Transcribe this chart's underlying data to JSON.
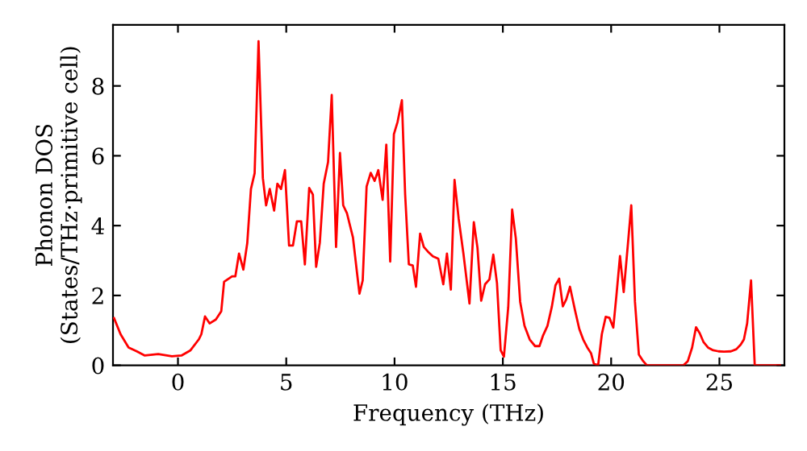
{
  "chart_data": {
    "type": "line",
    "xlabel": "Frequency (THz)",
    "ylabel": "Phonon DOS\n(States/THz·primitive cell)",
    "xlim": [
      -3,
      28
    ],
    "ylim": [
      0,
      9.75
    ],
    "xticks": [
      0,
      5,
      10,
      15,
      20,
      25
    ],
    "yticks": [
      0,
      2,
      4,
      6,
      8
    ],
    "grid": false,
    "marker": "none",
    "line_style": "solid",
    "series": [
      {
        "color": "#ff0000",
        "x": [
          -2.95,
          -2.65,
          -2.28,
          -1.9,
          -1.53,
          -0.91,
          -0.28,
          0.16,
          0.58,
          0.96,
          1.08,
          1.25,
          1.46,
          1.75,
          2.0,
          2.13,
          2.5,
          2.65,
          2.82,
          3.02,
          3.2,
          3.37,
          3.54,
          3.72,
          3.92,
          4.07,
          4.24,
          4.44,
          4.59,
          4.76,
          4.94,
          5.13,
          5.31,
          5.49,
          5.69,
          5.86,
          6.06,
          6.23,
          6.38,
          6.55,
          6.73,
          6.93,
          7.1,
          7.3,
          7.48,
          7.63,
          7.8,
          8.08,
          8.25,
          8.38,
          8.53,
          8.71,
          8.9,
          9.08,
          9.25,
          9.45,
          9.62,
          9.8,
          9.97,
          10.14,
          10.34,
          10.49,
          10.66,
          10.84,
          10.99,
          11.18,
          11.35,
          11.55,
          11.77,
          12.02,
          12.25,
          12.42,
          12.6,
          12.77,
          12.96,
          13.18,
          13.46,
          13.66,
          13.83,
          14.0,
          14.18,
          14.38,
          14.56,
          14.73,
          14.9,
          15.05,
          15.25,
          15.43,
          15.6,
          15.8,
          16.0,
          16.24,
          16.49,
          16.69,
          16.86,
          17.06,
          17.26,
          17.43,
          17.6,
          17.77,
          17.93,
          18.1,
          18.33,
          18.53,
          18.71,
          18.9,
          19.07,
          19.2,
          19.4,
          19.57,
          19.75,
          19.92,
          20.1,
          20.24,
          20.41,
          20.58,
          20.78,
          20.93,
          21.1,
          21.28,
          21.48,
          21.65,
          23.34,
          23.54,
          23.74,
          23.92,
          24.09,
          24.27,
          24.47,
          24.71,
          24.96,
          25.21,
          25.53,
          25.78,
          25.98,
          26.13,
          26.28,
          26.46,
          26.63,
          27.8
        ],
        "values": [
          1.35,
          0.89,
          0.51,
          0.4,
          0.28,
          0.32,
          0.26,
          0.28,
          0.43,
          0.74,
          0.89,
          1.4,
          1.2,
          1.31,
          1.55,
          2.39,
          2.55,
          2.55,
          3.2,
          2.74,
          3.5,
          5.05,
          5.5,
          9.28,
          5.36,
          4.58,
          5.05,
          4.43,
          5.2,
          5.05,
          5.59,
          3.43,
          3.43,
          4.12,
          4.12,
          2.89,
          5.08,
          4.89,
          2.82,
          3.51,
          5.2,
          5.82,
          7.74,
          3.39,
          6.08,
          4.58,
          4.36,
          3.66,
          2.74,
          2.05,
          2.43,
          5.12,
          5.51,
          5.28,
          5.59,
          4.74,
          6.32,
          2.97,
          6.62,
          6.97,
          7.59,
          4.89,
          2.89,
          2.86,
          2.25,
          3.77,
          3.39,
          3.25,
          3.12,
          3.05,
          2.32,
          3.2,
          2.17,
          5.31,
          4.2,
          3.2,
          1.77,
          4.1,
          3.36,
          1.85,
          2.32,
          2.46,
          3.17,
          2.35,
          0.43,
          0.25,
          1.67,
          4.46,
          3.63,
          1.82,
          1.13,
          0.74,
          0.55,
          0.55,
          0.86,
          1.13,
          1.67,
          2.29,
          2.48,
          1.69,
          1.89,
          2.25,
          1.58,
          1.04,
          0.74,
          0.51,
          0.35,
          0.05,
          0.0,
          0.89,
          1.39,
          1.36,
          1.08,
          1.97,
          3.13,
          2.1,
          3.51,
          4.58,
          1.82,
          0.31,
          0.12,
          0.0,
          0.0,
          0.12,
          0.51,
          1.09,
          0.92,
          0.66,
          0.51,
          0.43,
          0.4,
          0.39,
          0.4,
          0.46,
          0.59,
          0.74,
          1.2,
          2.43,
          0.0,
          0.0
        ]
      }
    ]
  }
}
